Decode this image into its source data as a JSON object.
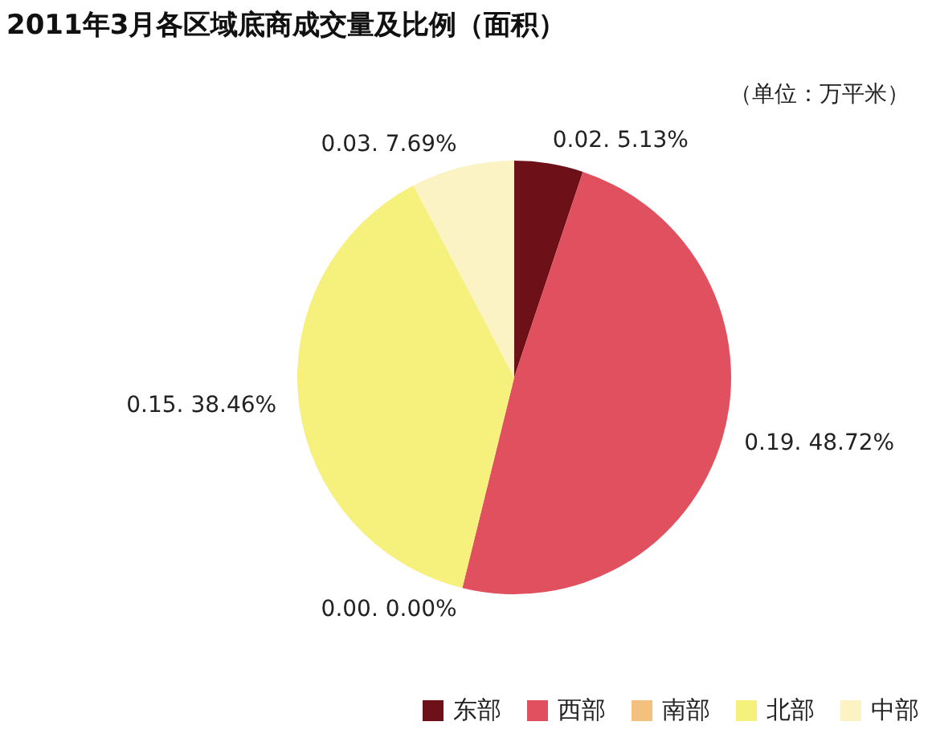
{
  "chart_data": {
    "type": "pie",
    "title": "2011年3月各区域底商成交量及比例（面积）",
    "subtitle": "（单位：万平米）",
    "categories": [
      "东部",
      "西部",
      "南部",
      "北部",
      "中部"
    ],
    "values": [
      0.02,
      0.19,
      0.0,
      0.15,
      0.03
    ],
    "value_labels": [
      "0.02. 5.13%",
      "0.19. 48.72%",
      "0.00. 0.00%",
      "0.15. 38.46%",
      "0.03. 7.69%"
    ],
    "colors": [
      "#6e1018",
      "#e0505e",
      "#f4c07e",
      "#f6f07c",
      "#fbf3c4"
    ],
    "legend": "bottom right"
  }
}
